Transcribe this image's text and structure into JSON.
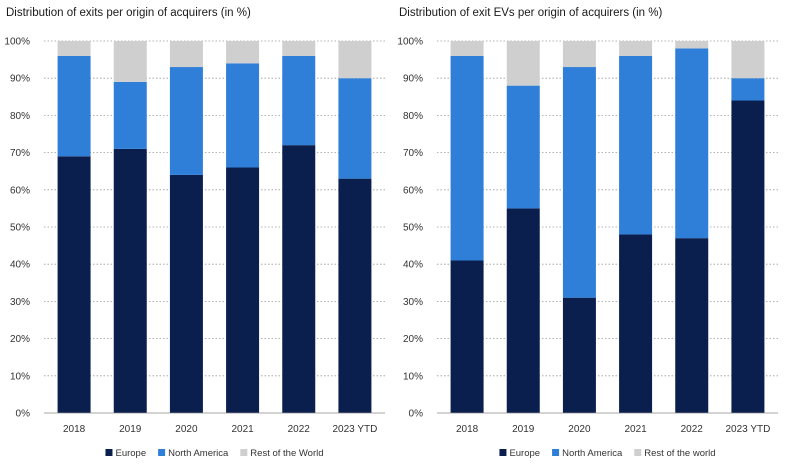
{
  "charts": [
    {
      "title": "Distribution of exits per origin of acquirers (in %)"
    },
    {
      "title": "Distribution of exit EVs per origin of acquirers (in %)"
    }
  ],
  "chart_data": [
    {
      "type": "bar",
      "stacked": true,
      "title": "Distribution of exits per origin of acquirers (in %)",
      "categories": [
        "2018",
        "2019",
        "2020",
        "2021",
        "2022",
        "2023 YTD"
      ],
      "series": [
        {
          "name": "Europe",
          "color": "#0b1f4f",
          "values": [
            69,
            71,
            64,
            66,
            72,
            63
          ]
        },
        {
          "name": "North America",
          "color": "#2f7fd8",
          "values": [
            27,
            18,
            29,
            28,
            24,
            27
          ]
        },
        {
          "name": "Rest of the World",
          "color": "#cfcfcf",
          "values": [
            4,
            11,
            7,
            6,
            4,
            10
          ]
        }
      ],
      "ylim": [
        0,
        100
      ],
      "yticks": [
        "0%",
        "10%",
        "20%",
        "30%",
        "40%",
        "50%",
        "60%",
        "70%",
        "80%",
        "90%",
        "100%"
      ],
      "grid": true,
      "legend": "bottom"
    },
    {
      "type": "bar",
      "stacked": true,
      "title": "Distribution of exit EVs per origin of acquirers (in %)",
      "categories": [
        "2018",
        "2019",
        "2020",
        "2021",
        "2022",
        "2023 YTD"
      ],
      "series": [
        {
          "name": "Europe",
          "color": "#0b1f4f",
          "values": [
            41,
            55,
            31,
            48,
            47,
            84
          ]
        },
        {
          "name": "North America",
          "color": "#2f7fd8",
          "values": [
            55,
            33,
            62,
            48,
            51,
            6
          ]
        },
        {
          "name": "Rest of the world",
          "color": "#cfcfcf",
          "values": [
            4,
            12,
            7,
            4,
            2,
            10
          ]
        }
      ],
      "ylim": [
        0,
        100
      ],
      "yticks": [
        "0%",
        "10%",
        "20%",
        "30%",
        "40%",
        "50%",
        "60%",
        "70%",
        "80%",
        "90%",
        "100%"
      ],
      "grid": true,
      "legend": "bottom"
    }
  ]
}
